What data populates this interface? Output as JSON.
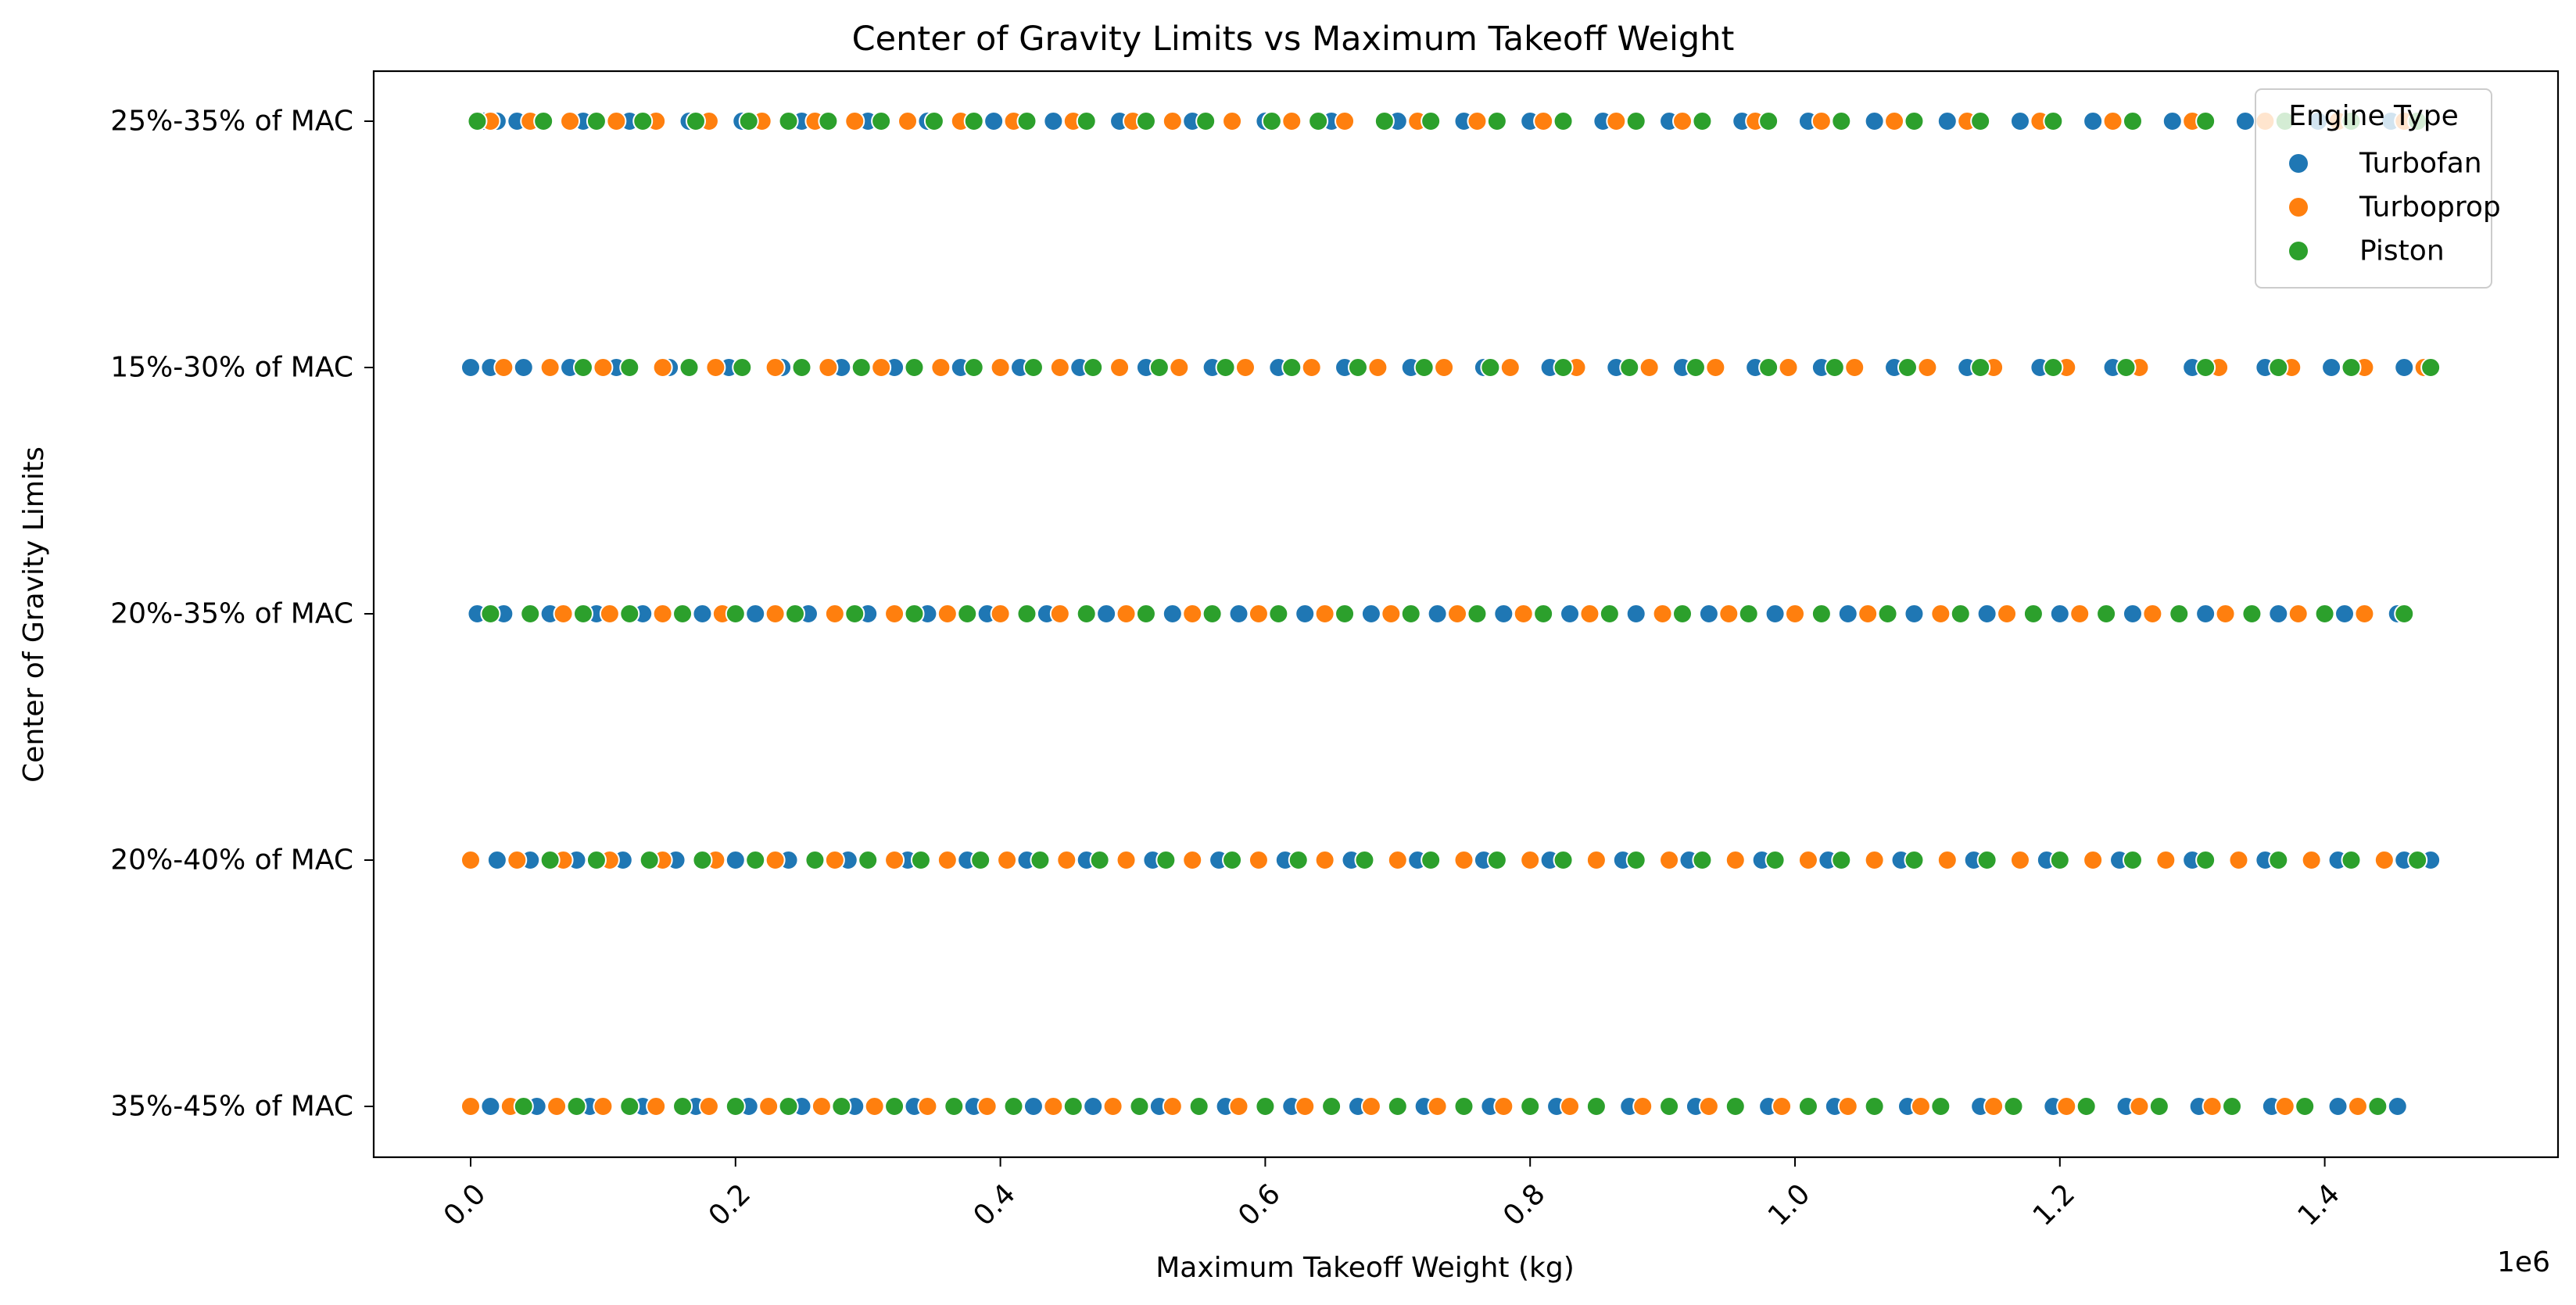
{
  "chart_data": {
    "type": "scatter",
    "title": "Center of Gravity Limits vs Maximum Takeoff Weight",
    "xlabel": "Maximum Takeoff Weight (kg)",
    "ylabel": "Center of Gravity Limits",
    "x_offset_label": "1e6",
    "xlim": [
      -72000,
      1535000
    ],
    "x_ticks": [
      0,
      200000,
      400000,
      600000,
      800000,
      1000000,
      1200000,
      1400000
    ],
    "x_tick_labels": [
      "0.0",
      "0.2",
      "0.4",
      "0.6",
      "0.8",
      "1.0",
      "1.2",
      "1.4"
    ],
    "categories": [
      "25%-35% of MAC",
      "15%-30% of MAC",
      "20%-35% of MAC",
      "20%-40% of MAC",
      "35%-45% of MAC"
    ],
    "legend": {
      "title": "Engine Type",
      "position": "upper right"
    },
    "grid": false,
    "series": [
      {
        "name": "Turbofan",
        "color": "#1f77b4",
        "points_by_category": {
          "25%-35% of MAC": [
            10000,
            20000,
            35000,
            55000,
            85000,
            120000,
            165000,
            205000,
            250000,
            300000,
            345000,
            395000,
            440000,
            490000,
            545000,
            600000,
            650000,
            700000,
            750000,
            800000,
            855000,
            905000,
            960000,
            1010000,
            1060000,
            1115000,
            1170000,
            1225000,
            1285000,
            1340000,
            1395000,
            1450000
          ],
          "15%-30% of MAC": [
            0,
            15000,
            40000,
            75000,
            110000,
            150000,
            195000,
            235000,
            280000,
            320000,
            370000,
            415000,
            460000,
            510000,
            560000,
            610000,
            660000,
            710000,
            765000,
            815000,
            865000,
            915000,
            970000,
            1020000,
            1075000,
            1130000,
            1185000,
            1240000,
            1300000,
            1355000,
            1405000,
            1460000
          ],
          "20%-35% of MAC": [
            5000,
            25000,
            60000,
            95000,
            130000,
            175000,
            215000,
            255000,
            300000,
            345000,
            390000,
            435000,
            480000,
            530000,
            580000,
            630000,
            680000,
            730000,
            780000,
            830000,
            880000,
            935000,
            985000,
            1040000,
            1090000,
            1145000,
            1200000,
            1255000,
            1310000,
            1365000,
            1415000,
            1455000
          ],
          "20%-40% of MAC": [
            20000,
            45000,
            80000,
            115000,
            155000,
            200000,
            240000,
            285000,
            330000,
            375000,
            420000,
            465000,
            515000,
            565000,
            615000,
            665000,
            715000,
            765000,
            815000,
            870000,
            920000,
            975000,
            1025000,
            1080000,
            1135000,
            1190000,
            1245000,
            1300000,
            1355000,
            1410000,
            1460000,
            1480000
          ],
          "35%-45% of MAC": [
            15000,
            50000,
            90000,
            130000,
            170000,
            210000,
            250000,
            290000,
            335000,
            380000,
            425000,
            470000,
            520000,
            570000,
            620000,
            670000,
            720000,
            770000,
            820000,
            875000,
            925000,
            980000,
            1030000,
            1085000,
            1140000,
            1195000,
            1250000,
            1305000,
            1360000,
            1410000,
            1455000
          ]
        }
      },
      {
        "name": "Turboprop",
        "color": "#ff7f0e",
        "points_by_category": {
          "25%-35% of MAC": [
            15000,
            45000,
            75000,
            110000,
            140000,
            180000,
            220000,
            260000,
            290000,
            330000,
            370000,
            410000,
            455000,
            500000,
            530000,
            575000,
            620000,
            660000,
            715000,
            760000,
            810000,
            865000,
            915000,
            970000,
            1020000,
            1075000,
            1130000,
            1185000,
            1240000,
            1300000,
            1355000,
            1410000,
            1460000
          ],
          "15%-30% of MAC": [
            25000,
            60000,
            100000,
            145000,
            185000,
            230000,
            270000,
            310000,
            355000,
            400000,
            445000,
            490000,
            535000,
            585000,
            635000,
            685000,
            735000,
            785000,
            835000,
            890000,
            940000,
            995000,
            1045000,
            1100000,
            1150000,
            1205000,
            1260000,
            1320000,
            1375000,
            1430000,
            1475000
          ],
          "20%-35% of MAC": [
            70000,
            105000,
            145000,
            190000,
            230000,
            275000,
            320000,
            360000,
            400000,
            445000,
            495000,
            545000,
            595000,
            645000,
            695000,
            745000,
            795000,
            845000,
            900000,
            950000,
            1000000,
            1055000,
            1110000,
            1160000,
            1215000,
            1270000,
            1325000,
            1380000,
            1430000
          ],
          "20%-40% of MAC": [
            0,
            35000,
            70000,
            105000,
            145000,
            185000,
            230000,
            275000,
            320000,
            360000,
            405000,
            450000,
            495000,
            545000,
            595000,
            645000,
            700000,
            750000,
            800000,
            850000,
            905000,
            955000,
            1010000,
            1060000,
            1115000,
            1170000,
            1225000,
            1280000,
            1335000,
            1390000,
            1445000
          ],
          "35%-45% of MAC": [
            0,
            30000,
            65000,
            100000,
            140000,
            180000,
            225000,
            265000,
            305000,
            345000,
            390000,
            440000,
            485000,
            530000,
            580000,
            630000,
            680000,
            730000,
            780000,
            830000,
            885000,
            935000,
            990000,
            1040000,
            1095000,
            1150000,
            1205000,
            1260000,
            1315000,
            1370000,
            1425000
          ]
        }
      },
      {
        "name": "Piston",
        "color": "#2ca02c",
        "points_by_category": {
          "25%-35% of MAC": [
            5000,
            55000,
            95000,
            130000,
            170000,
            210000,
            240000,
            270000,
            310000,
            350000,
            380000,
            420000,
            465000,
            510000,
            555000,
            605000,
            640000,
            690000,
            725000,
            775000,
            825000,
            880000,
            930000,
            980000,
            1035000,
            1090000,
            1140000,
            1195000,
            1255000,
            1310000,
            1370000,
            1420000,
            1470000
          ],
          "15%-30% of MAC": [
            85000,
            120000,
            165000,
            205000,
            250000,
            295000,
            335000,
            380000,
            425000,
            470000,
            520000,
            570000,
            620000,
            670000,
            720000,
            770000,
            825000,
            875000,
            925000,
            980000,
            1030000,
            1085000,
            1140000,
            1195000,
            1250000,
            1310000,
            1365000,
            1420000,
            1480000
          ],
          "20%-35% of MAC": [
            15000,
            45000,
            85000,
            120000,
            160000,
            200000,
            245000,
            290000,
            335000,
            375000,
            420000,
            465000,
            510000,
            560000,
            610000,
            660000,
            710000,
            760000,
            810000,
            860000,
            915000,
            965000,
            1020000,
            1070000,
            1125000,
            1180000,
            1235000,
            1290000,
            1345000,
            1400000,
            1460000
          ],
          "20%-40% of MAC": [
            60000,
            95000,
            135000,
            175000,
            215000,
            260000,
            300000,
            340000,
            385000,
            430000,
            475000,
            525000,
            575000,
            625000,
            675000,
            725000,
            775000,
            825000,
            880000,
            930000,
            985000,
            1035000,
            1090000,
            1145000,
            1200000,
            1255000,
            1310000,
            1365000,
            1420000,
            1470000
          ],
          "35%-45% of MAC": [
            40000,
            80000,
            120000,
            160000,
            200000,
            240000,
            280000,
            320000,
            365000,
            410000,
            455000,
            505000,
            550000,
            600000,
            650000,
            700000,
            750000,
            800000,
            850000,
            905000,
            955000,
            1010000,
            1060000,
            1110000,
            1165000,
            1220000,
            1275000,
            1330000,
            1385000,
            1440000
          ]
        }
      }
    ]
  }
}
